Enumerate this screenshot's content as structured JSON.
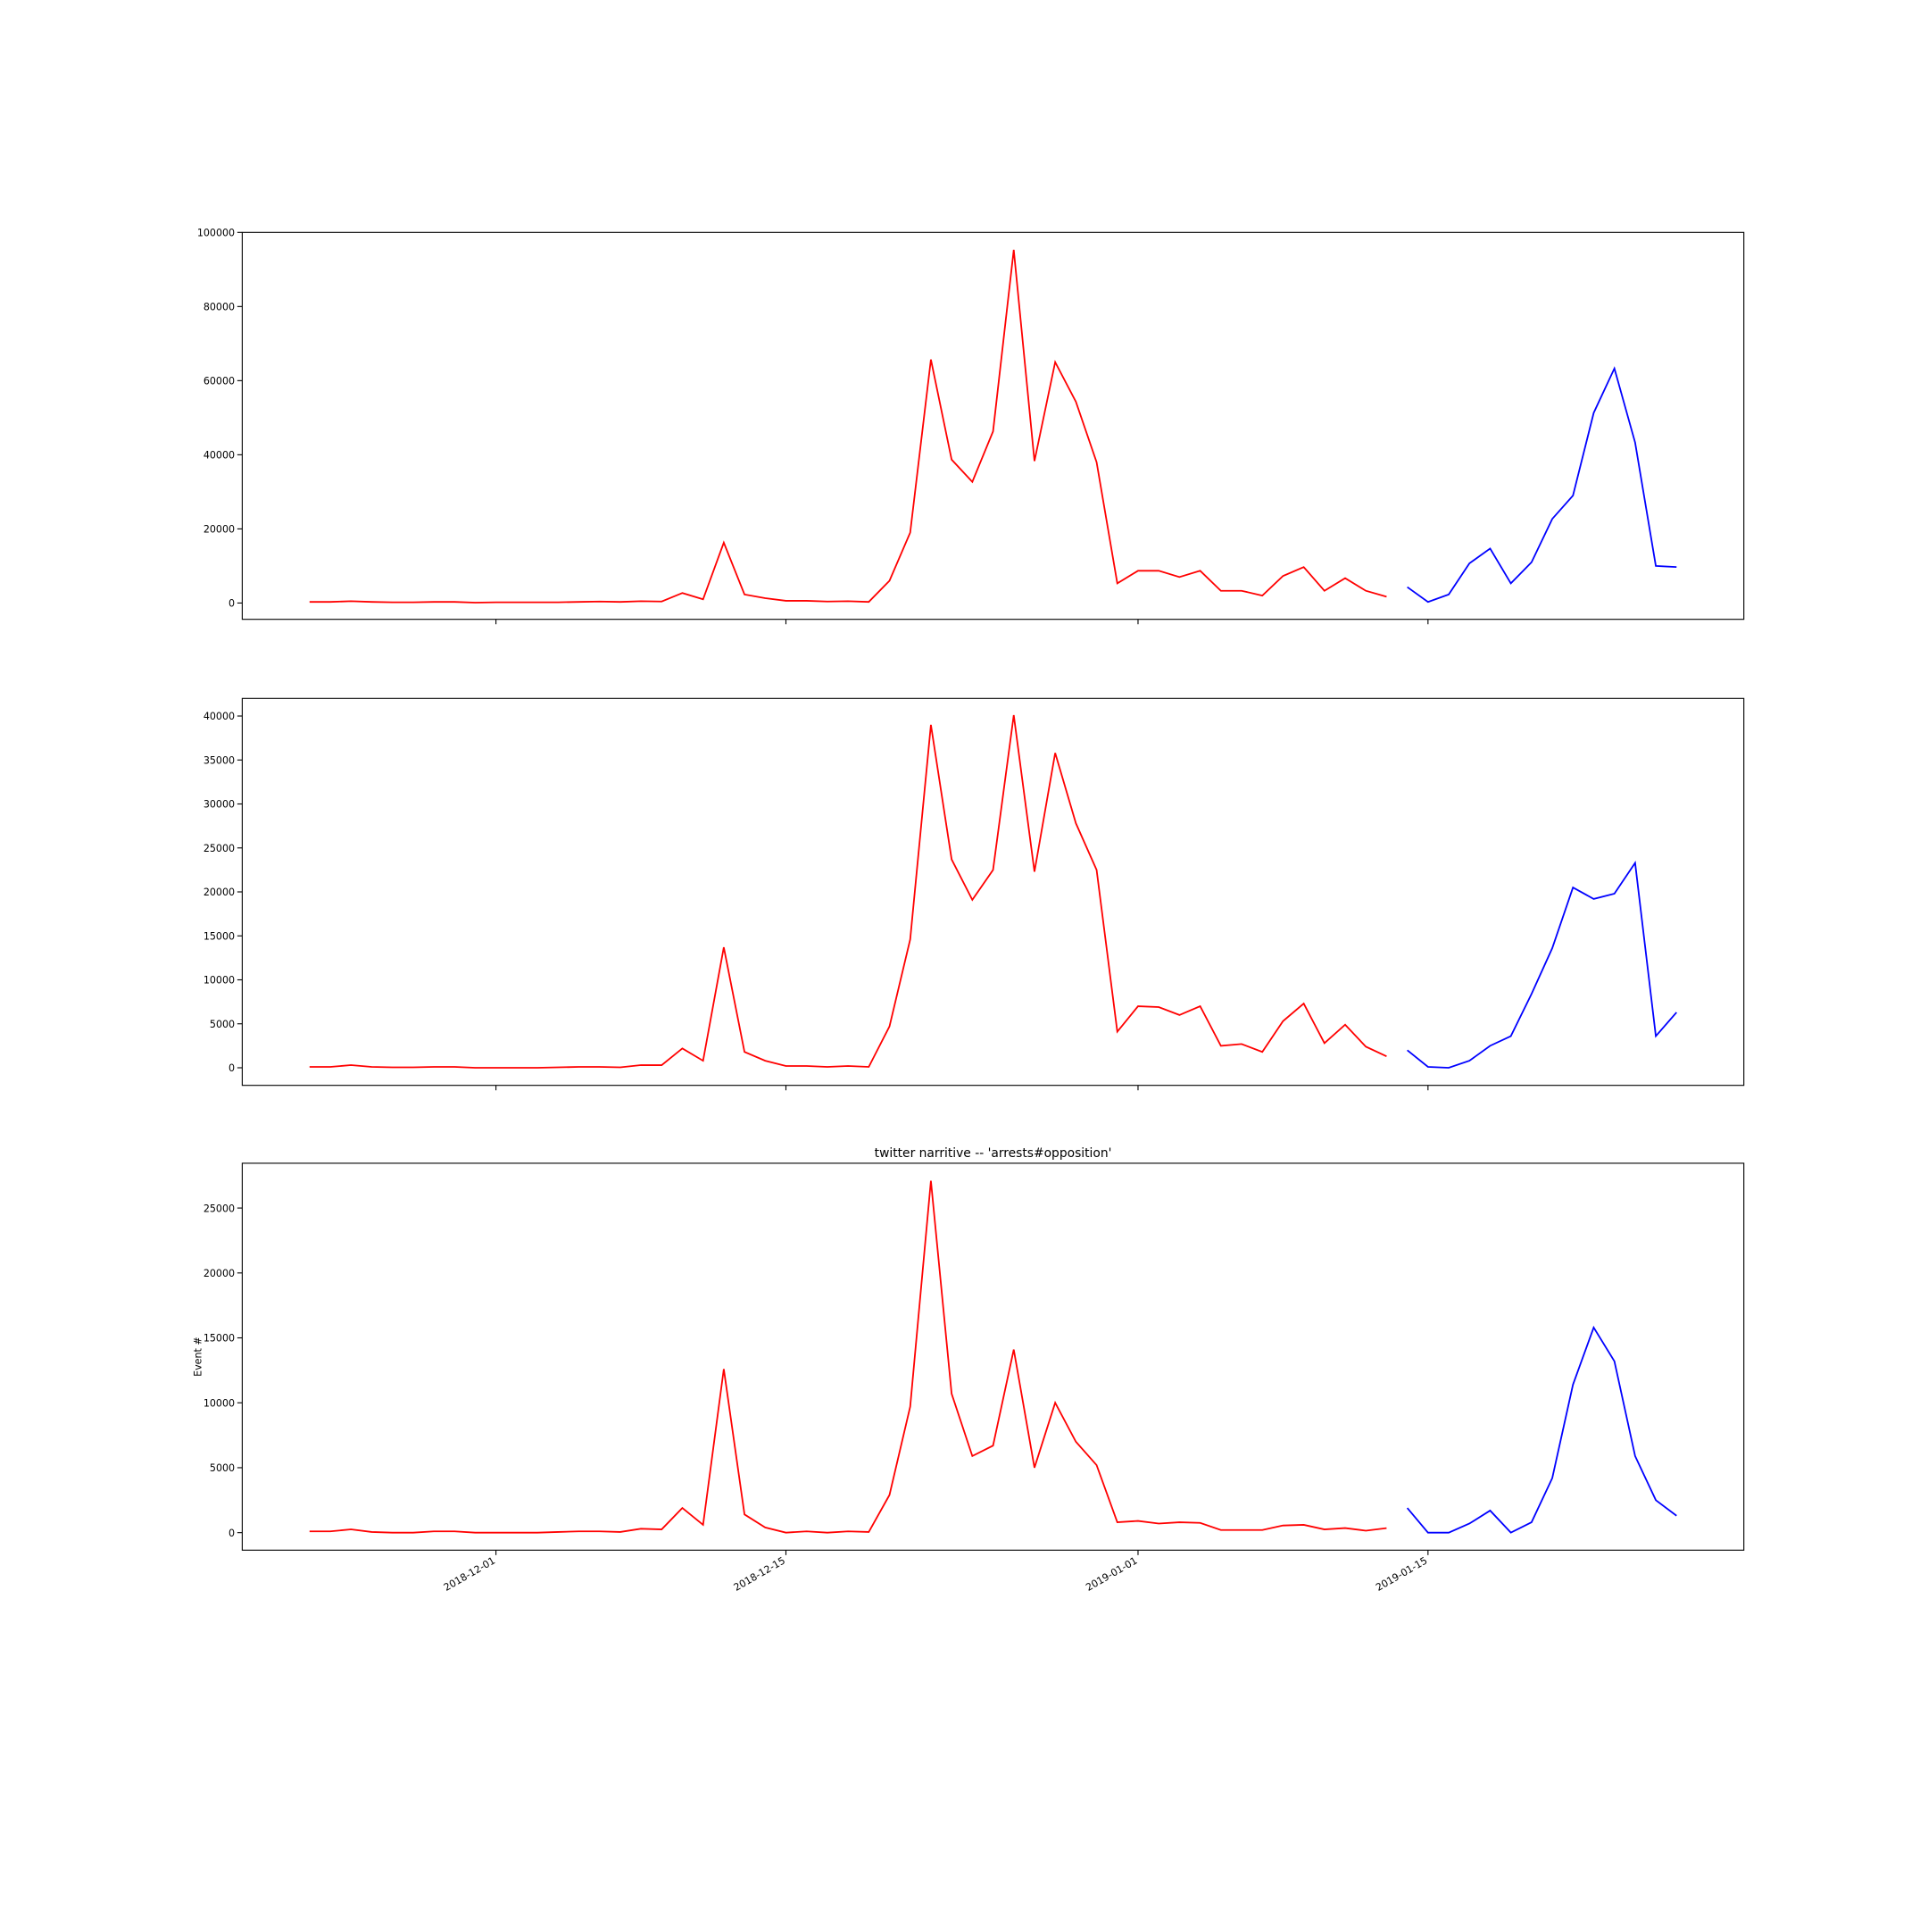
{
  "chart_data": [
    {
      "type": "line",
      "x": [
        "2018-11-22",
        "2018-11-23",
        "2018-11-24",
        "2018-11-25",
        "2018-11-26",
        "2018-11-27",
        "2018-11-28",
        "2018-11-29",
        "2018-11-30",
        "2018-12-01",
        "2018-12-02",
        "2018-12-03",
        "2018-12-04",
        "2018-12-05",
        "2018-12-06",
        "2018-12-07",
        "2018-12-08",
        "2018-12-09",
        "2018-12-10",
        "2018-12-11",
        "2018-12-12",
        "2018-12-13",
        "2018-12-14",
        "2018-12-15",
        "2018-12-16",
        "2018-12-17",
        "2018-12-18",
        "2018-12-19",
        "2018-12-20",
        "2018-12-21",
        "2018-12-22",
        "2018-12-23",
        "2018-12-24",
        "2018-12-25",
        "2018-12-26",
        "2018-12-27",
        "2018-12-28",
        "2018-12-29",
        "2018-12-30",
        "2018-12-31",
        "2019-01-01",
        "2019-01-02",
        "2019-01-03",
        "2019-01-04",
        "2019-01-05",
        "2019-01-06",
        "2019-01-07",
        "2019-01-08",
        "2019-01-09",
        "2019-01-10",
        "2019-01-11",
        "2019-01-12",
        "2019-01-13",
        "2019-01-14",
        "2019-01-15",
        "2019-01-16",
        "2019-01-17",
        "2019-01-18",
        "2019-01-19",
        "2019-01-20",
        "2019-01-21",
        "2019-01-22",
        "2019-01-23",
        "2019-01-24",
        "2019-01-25",
        "2019-01-26",
        "2019-01-27"
      ],
      "xlim": [
        "2018-11-18T18:00",
        "2019-01-30T06:00"
      ],
      "ylim": [
        -4400,
        100000
      ],
      "yticks": [
        0,
        20000,
        40000,
        60000,
        80000,
        100000
      ],
      "series": [
        {
          "color": "#ff0000",
          "values": [
            300,
            300,
            500,
            300,
            200,
            200,
            300,
            300,
            100,
            200,
            200,
            200,
            200,
            300,
            400,
            300,
            500,
            400,
            2700,
            1000,
            16300,
            2300,
            1300,
            600,
            600,
            400,
            500,
            300,
            6000,
            19000,
            65700,
            38700,
            32700,
            46300,
            95300,
            38300,
            65000,
            54300,
            38000,
            5300,
            8700,
            8700,
            7000,
            8700,
            3300,
            3300,
            2000,
            7300,
            9700,
            3300,
            6700,
            3300,
            1700,
            null,
            null,
            null,
            null,
            null,
            null,
            null,
            null,
            null,
            null,
            null,
            null,
            null,
            null
          ]
        },
        {
          "color": "#0000ff",
          "values": [
            null,
            null,
            null,
            null,
            null,
            null,
            null,
            null,
            null,
            null,
            null,
            null,
            null,
            null,
            null,
            null,
            null,
            null,
            null,
            null,
            null,
            null,
            null,
            null,
            null,
            null,
            null,
            null,
            null,
            null,
            null,
            null,
            null,
            null,
            null,
            null,
            null,
            null,
            null,
            null,
            null,
            null,
            null,
            null,
            null,
            null,
            null,
            null,
            null,
            null,
            null,
            null,
            null,
            4300,
            300,
            2300,
            10700,
            14700,
            5300,
            11000,
            22700,
            29000,
            51300,
            63300,
            43300,
            10000,
            9700
          ]
        }
      ]
    },
    {
      "type": "line",
      "x": [
        "2018-11-22",
        "2018-11-23",
        "2018-11-24",
        "2018-11-25",
        "2018-11-26",
        "2018-11-27",
        "2018-11-28",
        "2018-11-29",
        "2018-11-30",
        "2018-12-01",
        "2018-12-02",
        "2018-12-03",
        "2018-12-04",
        "2018-12-05",
        "2018-12-06",
        "2018-12-07",
        "2018-12-08",
        "2018-12-09",
        "2018-12-10",
        "2018-12-11",
        "2018-12-12",
        "2018-12-13",
        "2018-12-14",
        "2018-12-15",
        "2018-12-16",
        "2018-12-17",
        "2018-12-18",
        "2018-12-19",
        "2018-12-20",
        "2018-12-21",
        "2018-12-22",
        "2018-12-23",
        "2018-12-24",
        "2018-12-25",
        "2018-12-26",
        "2018-12-27",
        "2018-12-28",
        "2018-12-29",
        "2018-12-30",
        "2018-12-31",
        "2019-01-01",
        "2019-01-02",
        "2019-01-03",
        "2019-01-04",
        "2019-01-05",
        "2019-01-06",
        "2019-01-07",
        "2019-01-08",
        "2019-01-09",
        "2019-01-10",
        "2019-01-11",
        "2019-01-12",
        "2019-01-13",
        "2019-01-14",
        "2019-01-15",
        "2019-01-16",
        "2019-01-17",
        "2019-01-18",
        "2019-01-19",
        "2019-01-20",
        "2019-01-21",
        "2019-01-22",
        "2019-01-23",
        "2019-01-24",
        "2019-01-25",
        "2019-01-26",
        "2019-01-27"
      ],
      "xlim": [
        "2018-11-18T18:00",
        "2019-01-30T06:00"
      ],
      "ylim": [
        -2000,
        42000
      ],
      "yticks": [
        0,
        5000,
        10000,
        15000,
        20000,
        25000,
        30000,
        35000,
        40000
      ],
      "series": [
        {
          "color": "#ff0000",
          "values": [
            100,
            100,
            300,
            100,
            50,
            50,
            100,
            100,
            0,
            0,
            0,
            0,
            50,
            100,
            100,
            50,
            300,
            300,
            2200,
            800,
            13700,
            1800,
            800,
            200,
            200,
            100,
            200,
            100,
            4700,
            14600,
            39000,
            23700,
            19100,
            22500,
            40100,
            22300,
            35800,
            27800,
            22500,
            4100,
            7000,
            6900,
            6000,
            7000,
            2500,
            2700,
            1800,
            5300,
            7300,
            2800,
            4900,
            2400,
            1300,
            null,
            null,
            null,
            null,
            null,
            null,
            null,
            null,
            null,
            null,
            null,
            null,
            null,
            null
          ]
        },
        {
          "color": "#0000ff",
          "values": [
            null,
            null,
            null,
            null,
            null,
            null,
            null,
            null,
            null,
            null,
            null,
            null,
            null,
            null,
            null,
            null,
            null,
            null,
            null,
            null,
            null,
            null,
            null,
            null,
            null,
            null,
            null,
            null,
            null,
            null,
            null,
            null,
            null,
            null,
            null,
            null,
            null,
            null,
            null,
            null,
            null,
            null,
            null,
            null,
            null,
            null,
            null,
            null,
            null,
            null,
            null,
            null,
            null,
            2000,
            100,
            0,
            800,
            2500,
            3600,
            8400,
            13600,
            20500,
            19200,
            19800,
            23300,
            3600,
            6300
          ]
        }
      ]
    },
    {
      "type": "line",
      "title": "twitter narritive -- 'arrests#opposition'",
      "ylabel": "Event #",
      "x": [
        "2018-11-22",
        "2018-11-23",
        "2018-11-24",
        "2018-11-25",
        "2018-11-26",
        "2018-11-27",
        "2018-11-28",
        "2018-11-29",
        "2018-11-30",
        "2018-12-01",
        "2018-12-02",
        "2018-12-03",
        "2018-12-04",
        "2018-12-05",
        "2018-12-06",
        "2018-12-07",
        "2018-12-08",
        "2018-12-09",
        "2018-12-10",
        "2018-12-11",
        "2018-12-12",
        "2018-12-13",
        "2018-12-14",
        "2018-12-15",
        "2018-12-16",
        "2018-12-17",
        "2018-12-18",
        "2018-12-19",
        "2018-12-20",
        "2018-12-21",
        "2018-12-22",
        "2018-12-23",
        "2018-12-24",
        "2018-12-25",
        "2018-12-26",
        "2018-12-27",
        "2018-12-28",
        "2018-12-29",
        "2018-12-30",
        "2018-12-31",
        "2019-01-01",
        "2019-01-02",
        "2019-01-03",
        "2019-01-04",
        "2019-01-05",
        "2019-01-06",
        "2019-01-07",
        "2019-01-08",
        "2019-01-09",
        "2019-01-10",
        "2019-01-11",
        "2019-01-12",
        "2019-01-13",
        "2019-01-14",
        "2019-01-15",
        "2019-01-16",
        "2019-01-17",
        "2019-01-18",
        "2019-01-19",
        "2019-01-20",
        "2019-01-21",
        "2019-01-22",
        "2019-01-23",
        "2019-01-24",
        "2019-01-25",
        "2019-01-26",
        "2019-01-27"
      ],
      "xlim": [
        "2018-11-18T18:00",
        "2019-01-30T06:00"
      ],
      "xticks": [
        "2018-12-01",
        "2018-12-15",
        "2019-01-01",
        "2019-01-15"
      ],
      "ylim": [
        -1350,
        28450
      ],
      "yticks": [
        0,
        5000,
        10000,
        15000,
        20000,
        25000
      ],
      "series": [
        {
          "color": "#ff0000",
          "values": [
            100,
            100,
            250,
            50,
            0,
            0,
            100,
            100,
            0,
            0,
            0,
            0,
            50,
            100,
            100,
            50,
            300,
            250,
            1900,
            600,
            12600,
            1400,
            400,
            0,
            100,
            0,
            100,
            50,
            2900,
            9700,
            27100,
            10700,
            5900,
            6700,
            14100,
            5000,
            10000,
            7000,
            5200,
            800,
            900,
            700,
            800,
            750,
            200,
            200,
            200,
            550,
            600,
            250,
            350,
            150,
            350,
            null,
            null,
            null,
            null,
            null,
            null,
            null,
            null,
            null,
            null,
            null,
            null,
            null,
            null
          ]
        },
        {
          "color": "#0000ff",
          "values": [
            null,
            null,
            null,
            null,
            null,
            null,
            null,
            null,
            null,
            null,
            null,
            null,
            null,
            null,
            null,
            null,
            null,
            null,
            null,
            null,
            null,
            null,
            null,
            null,
            null,
            null,
            null,
            null,
            null,
            null,
            null,
            null,
            null,
            null,
            null,
            null,
            null,
            null,
            null,
            null,
            null,
            null,
            null,
            null,
            null,
            null,
            null,
            null,
            null,
            null,
            null,
            null,
            null,
            1900,
            0,
            0,
            700,
            1700,
            0,
            800,
            4200,
            11400,
            15800,
            13200,
            5900,
            2500,
            1300
          ]
        }
      ]
    }
  ]
}
